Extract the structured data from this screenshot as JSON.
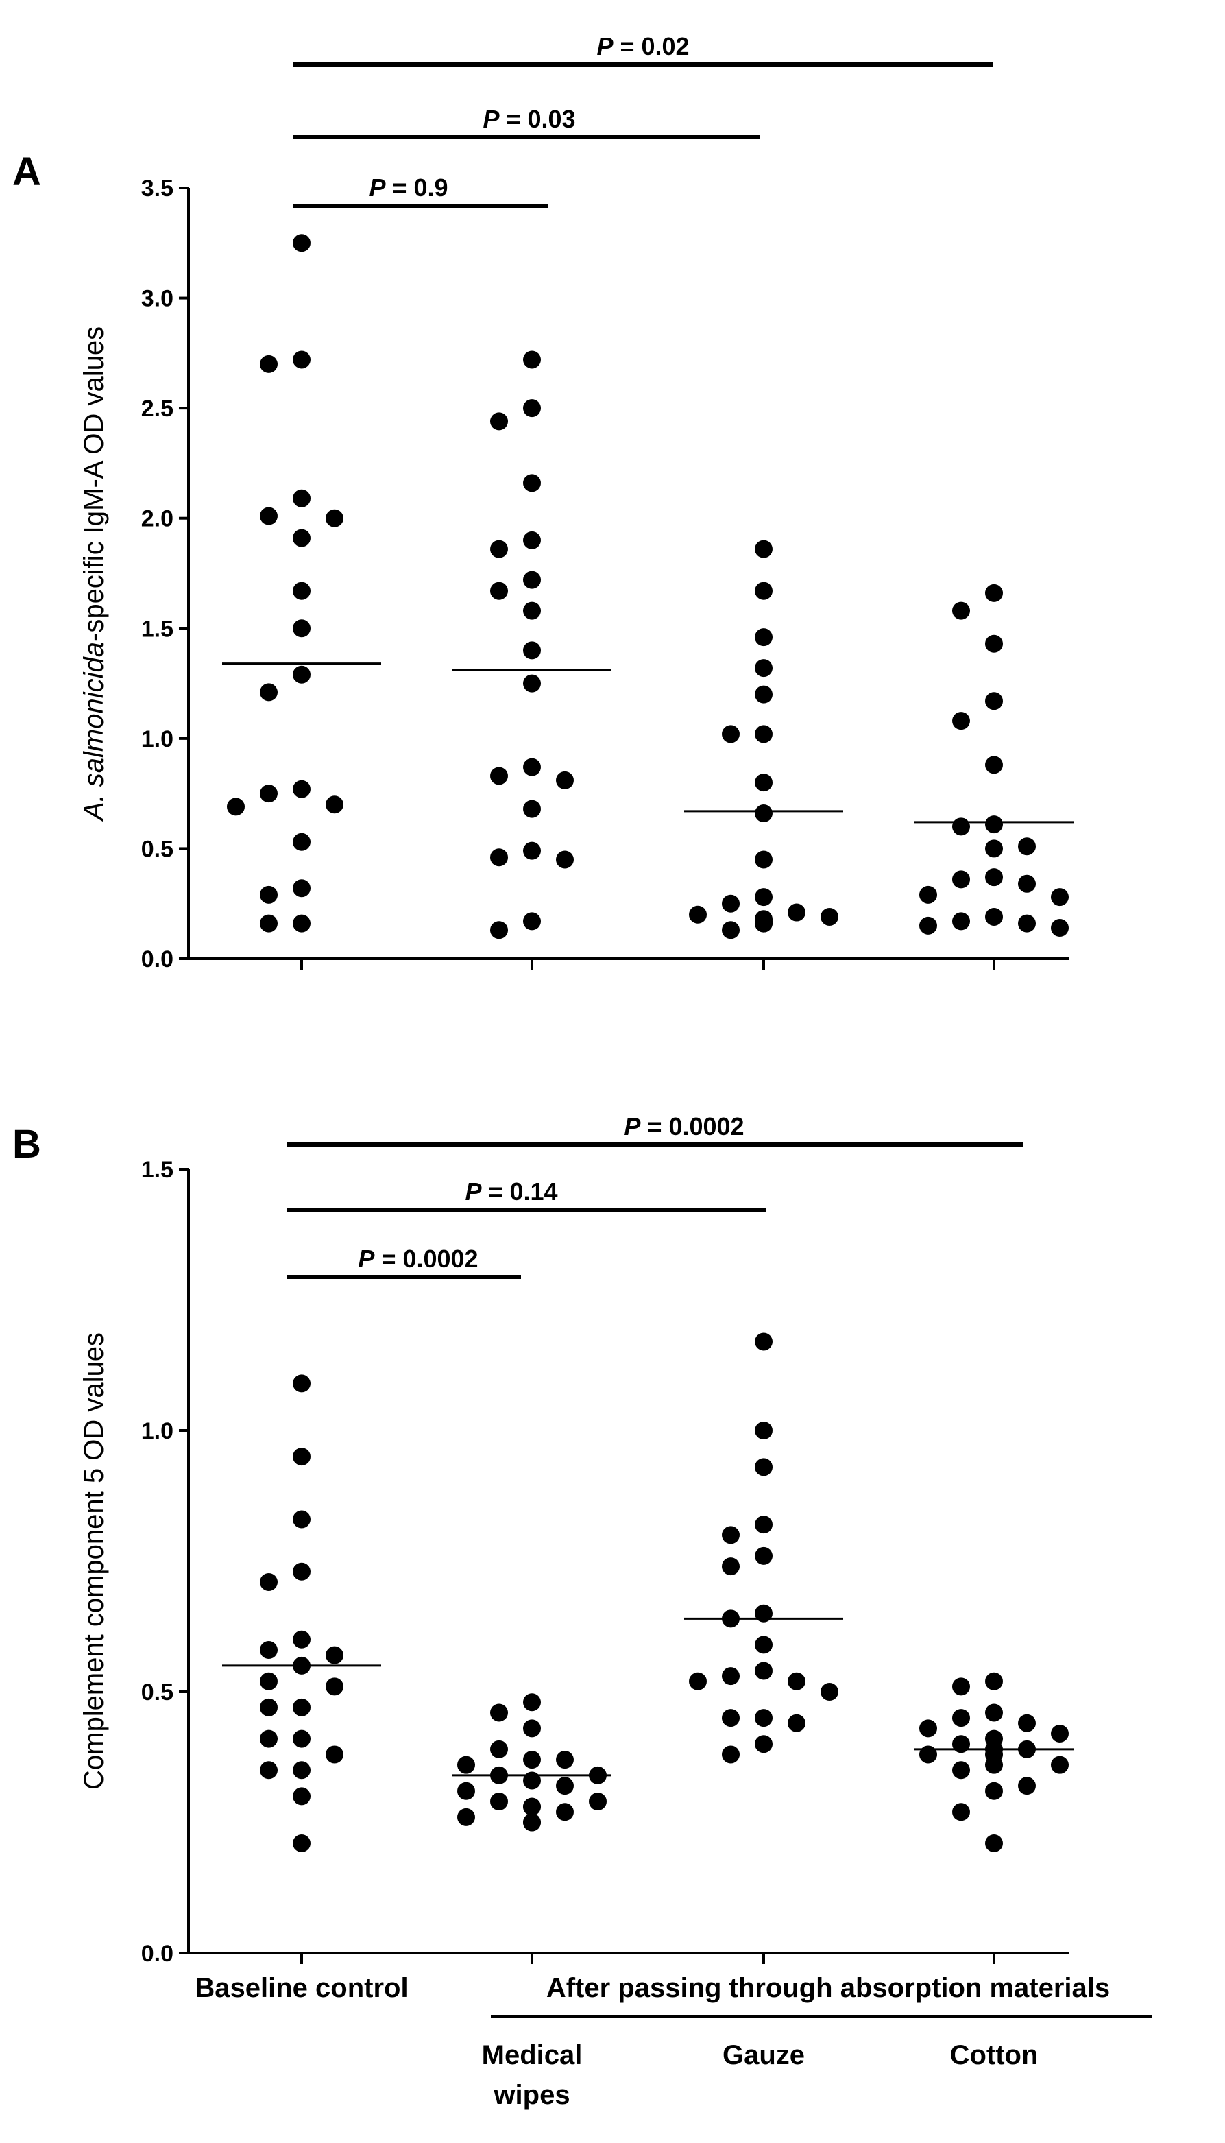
{
  "figure": {
    "panel_a_letter": "A",
    "panel_b_letter": "B",
    "x_label_baseline": "Baseline control",
    "x_label_group": "After passing through absorption materials",
    "x_sub_medical_line1": "Medical",
    "x_sub_medical_line2": "wipes",
    "x_sub_gauze": "Gauze",
    "x_sub_cotton": "Cotton"
  },
  "chart_data": [
    {
      "type": "scatter",
      "panel": "A",
      "ylabel_italic": "A. salmonicida",
      "ylabel_rest": "-specific IgM-A OD values",
      "ylim": [
        0,
        3.5
      ],
      "yticks": [
        0.0,
        0.5,
        1.0,
        1.5,
        2.0,
        2.5,
        3.0,
        3.5
      ],
      "ytick_labels": [
        "0.0",
        "0.5",
        "1.0",
        "1.5",
        "2.0",
        "2.5",
        "3.0",
        "3.5"
      ],
      "categories": [
        "Baseline control",
        "Medical wipes",
        "Gauze",
        "Cotton"
      ],
      "groups": [
        {
          "name": "Baseline control",
          "mean": 1.34,
          "values": [
            3.25,
            2.72,
            2.7,
            2.09,
            2.0,
            2.01,
            1.91,
            1.67,
            1.5,
            1.29,
            1.21,
            0.77,
            0.75,
            0.7,
            0.69,
            0.53,
            0.32,
            0.29,
            0.16,
            0.16
          ]
        },
        {
          "name": "Medical wipes",
          "mean": 1.31,
          "values": [
            2.72,
            2.5,
            2.44,
            2.16,
            1.9,
            1.86,
            1.72,
            1.67,
            1.58,
            1.4,
            1.25,
            0.87,
            0.83,
            0.81,
            0.68,
            0.49,
            0.46,
            0.45,
            0.17,
            0.13
          ]
        },
        {
          "name": "Gauze",
          "mean": 0.67,
          "values": [
            1.86,
            1.67,
            1.46,
            1.32,
            1.2,
            1.02,
            1.02,
            0.8,
            0.66,
            0.45,
            0.28,
            0.25,
            0.21,
            0.2,
            0.19,
            0.18,
            0.17,
            0.16,
            0.16,
            0.13
          ]
        },
        {
          "name": "Cotton",
          "mean": 0.62,
          "values": [
            1.66,
            1.58,
            1.43,
            1.17,
            1.08,
            0.88,
            0.61,
            0.6,
            0.51,
            0.5,
            0.37,
            0.36,
            0.34,
            0.29,
            0.28,
            0.19,
            0.17,
            0.16,
            0.15,
            0.14
          ]
        }
      ],
      "comparisons": [
        {
          "from": "Baseline control",
          "to": "Medical wipes",
          "label": "P = 0.9",
          "p_symbol": "P",
          "p_rest": " = 0.9"
        },
        {
          "from": "Baseline control",
          "to": "Gauze",
          "label": "P = 0.03",
          "p_symbol": "P",
          "p_rest": " = 0.03"
        },
        {
          "from": "Baseline control",
          "to": "Cotton",
          "label": "P = 0.02",
          "p_symbol": "P",
          "p_rest": " = 0.02"
        }
      ]
    },
    {
      "type": "scatter",
      "panel": "B",
      "ylabel_italic": "",
      "ylabel_rest": "Complement component 5 OD values",
      "ylim": [
        0,
        1.5
      ],
      "yticks": [
        0.0,
        0.5,
        1.0,
        1.5
      ],
      "ytick_labels": [
        "0.0",
        "0.5",
        "1.0",
        "1.5"
      ],
      "categories": [
        "Baseline control",
        "Medical wipes",
        "Gauze",
        "Cotton"
      ],
      "groups": [
        {
          "name": "Baseline control",
          "mean": 0.55,
          "values": [
            1.09,
            0.95,
            0.83,
            0.73,
            0.71,
            0.6,
            0.58,
            0.57,
            0.55,
            0.52,
            0.51,
            0.47,
            0.47,
            0.41,
            0.41,
            0.38,
            0.35,
            0.35,
            0.3,
            0.21
          ]
        },
        {
          "name": "Medical wipes",
          "mean": 0.34,
          "values": [
            0.48,
            0.46,
            0.43,
            0.39,
            0.37,
            0.37,
            0.36,
            0.34,
            0.34,
            0.33,
            0.32,
            0.31,
            0.29,
            0.29,
            0.28,
            0.28,
            0.27,
            0.26,
            0.25,
            0.25
          ]
        },
        {
          "name": "Gauze",
          "mean": 0.64,
          "values": [
            1.17,
            1.0,
            0.93,
            0.82,
            0.8,
            0.76,
            0.74,
            0.65,
            0.64,
            0.59,
            0.54,
            0.53,
            0.52,
            0.52,
            0.5,
            0.45,
            0.45,
            0.44,
            0.4,
            0.38
          ]
        },
        {
          "name": "Cotton",
          "mean": 0.39,
          "values": [
            0.52,
            0.51,
            0.46,
            0.45,
            0.44,
            0.43,
            0.42,
            0.41,
            0.4,
            0.39,
            0.39,
            0.38,
            0.38,
            0.36,
            0.36,
            0.35,
            0.32,
            0.31,
            0.27,
            0.21
          ]
        }
      ],
      "comparisons": [
        {
          "from": "Baseline control",
          "to": "Medical wipes",
          "label": "P = 0.0002",
          "p_symbol": "P",
          "p_rest": " = 0.0002"
        },
        {
          "from": "Baseline control",
          "to": "Gauze",
          "label": "P = 0.14",
          "p_symbol": "P",
          "p_rest": " = 0.14"
        },
        {
          "from": "Baseline control",
          "to": "Cotton",
          "label": "P = 0.0002",
          "p_symbol": "P",
          "p_rest": " = 0.0002"
        }
      ]
    }
  ]
}
